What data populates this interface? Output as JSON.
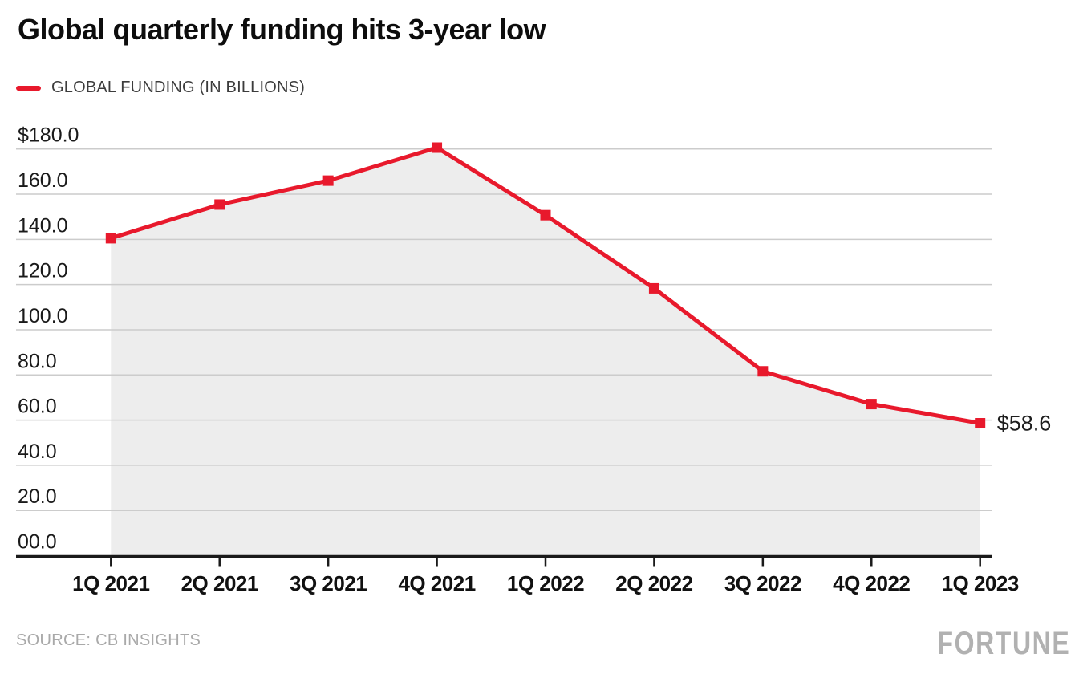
{
  "title": "Global quarterly funding hits 3-year low",
  "legend": {
    "label": "GLOBAL FUNDING (IN BILLIONS)",
    "color": "#e8192c"
  },
  "source": "SOURCE: CB INSIGHTS",
  "brand": "FORTUNE",
  "chart_data": {
    "type": "line",
    "title": "Global quarterly funding hits 3-year low",
    "categories": [
      "1Q 2021",
      "2Q 2021",
      "3Q 2021",
      "4Q 2021",
      "1Q 2022",
      "2Q 2022",
      "3Q 2022",
      "4Q 2022",
      "1Q 2023"
    ],
    "series": [
      {
        "name": "GLOBAL FUNDING (IN BILLIONS)",
        "values": [
          140.5,
          155.4,
          166.0,
          180.6,
          150.7,
          118.3,
          81.6,
          67.1,
          58.6
        ]
      }
    ],
    "end_label": "$58.6",
    "y_tick_labels": [
      "$180.0",
      "160.0",
      "140.0",
      "120.0",
      "100.0",
      "80.0",
      "60.0",
      "40.0",
      "20.0",
      "00.0"
    ],
    "y_tick_values": [
      180,
      160,
      140,
      120,
      100,
      80,
      60,
      40,
      20,
      0
    ],
    "ylim": [
      0,
      180
    ],
    "grid": true,
    "legend_position": "top-left",
    "marker": "square",
    "line_color": "#e8192c",
    "area_color": "#ededed",
    "grid_color": "#cccccc",
    "axis_color": "#1a1a1a",
    "label_color": "#1a1a1a"
  }
}
